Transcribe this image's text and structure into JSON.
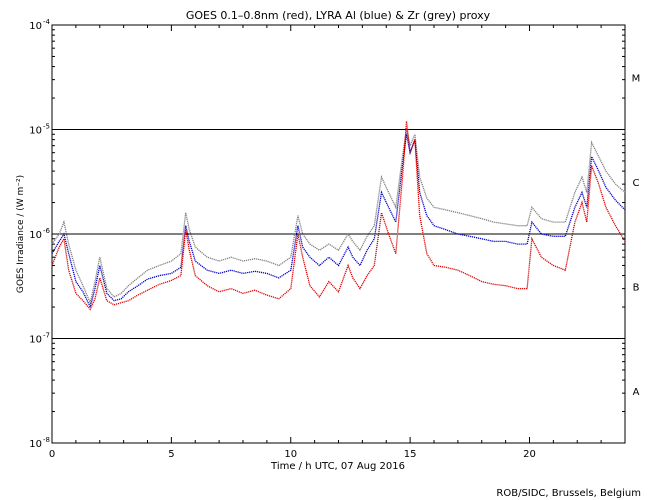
{
  "chart_data": {
    "type": "line",
    "title": "GOES 0.1–0.8nm (red), LYRA Al (blue) & Zr (grey) proxy",
    "xlabel": "Time / h UTC, 07 Aug 2016",
    "ylabel": "GOES Irradiance / (W m⁻²)",
    "credit": "ROB/SIDC, Brussels, Belgium",
    "xlim": [
      0,
      24
    ],
    "ylim": [
      1e-08,
      0.0001
    ],
    "yscale": "log",
    "x_ticks": [
      0,
      5,
      10,
      15,
      20
    ],
    "y_ticks": [
      {
        "value": 1e-08,
        "base": "10",
        "exp": "-8"
      },
      {
        "value": 1e-07,
        "base": "10",
        "exp": "-7"
      },
      {
        "value": 1e-06,
        "base": "10",
        "exp": "-6"
      },
      {
        "value": 1e-05,
        "base": "10",
        "exp": "-5"
      },
      {
        "value": 0.0001,
        "base": "10",
        "exp": "-4"
      }
    ],
    "class_lines": [
      1e-07,
      1e-06,
      1e-05
    ],
    "class_labels": [
      {
        "label": "A",
        "value": 3.16e-08
      },
      {
        "label": "B",
        "value": 3.16e-07
      },
      {
        "label": "C",
        "value": 3.16e-06
      },
      {
        "label": "M",
        "value": 3.16e-05
      }
    ],
    "series": [
      {
        "name": "Zr (grey) proxy",
        "color": "#808080",
        "x": [
          0,
          0.3,
          0.5,
          0.7,
          1.0,
          1.3,
          1.6,
          1.8,
          2.0,
          2.3,
          2.6,
          2.9,
          3.2,
          3.6,
          4.0,
          4.5,
          5.0,
          5.4,
          5.6,
          5.75,
          6.0,
          6.5,
          7.0,
          7.5,
          8.0,
          8.5,
          9.0,
          9.5,
          10.0,
          10.3,
          10.5,
          10.8,
          11.2,
          11.6,
          12.0,
          12.4,
          12.6,
          12.9,
          13.2,
          13.5,
          13.8,
          14.1,
          14.4,
          14.7,
          14.85,
          15.0,
          15.2,
          15.4,
          15.7,
          16.0,
          16.5,
          17.0,
          17.5,
          18.0,
          18.5,
          19.0,
          19.5,
          19.9,
          20.1,
          20.5,
          21.0,
          21.5,
          21.9,
          22.2,
          22.4,
          22.6,
          22.9,
          23.2,
          23.6,
          24.0
        ],
        "values": [
          8e-07,
          1e-06,
          1.3e-06,
          8e-07,
          4.5e-07,
          3.2e-07,
          2.2e-07,
          3.5e-07,
          6e-07,
          3e-07,
          2.5e-07,
          2.7e-07,
          3.2e-07,
          3.8e-07,
          4.5e-07,
          5e-07,
          5.5e-07,
          6.5e-07,
          1.6e-06,
          1.1e-06,
          7.5e-07,
          6e-07,
          5.5e-07,
          6e-07,
          5.5e-07,
          5.8e-07,
          5.5e-07,
          5e-07,
          6e-07,
          1.5e-06,
          1e-06,
          8e-07,
          7e-07,
          8e-07,
          7e-07,
          1e-06,
          8.5e-07,
          7e-07,
          9.5e-07,
          1.2e-06,
          3.5e-06,
          2.5e-06,
          1.8e-06,
          6e-06,
          1e-05,
          7e-06,
          9e-06,
          3.5e-06,
          2.2e-06,
          1.8e-06,
          1.7e-06,
          1.6e-06,
          1.5e-06,
          1.4e-06,
          1.3e-06,
          1.25e-06,
          1.2e-06,
          1.2e-06,
          1.8e-06,
          1.4e-06,
          1.3e-06,
          1.3e-06,
          2.5e-06,
          3.5e-06,
          2.5e-06,
          7.5e-06,
          5.5e-06,
          4e-06,
          3e-06,
          2.5e-06
        ]
      },
      {
        "name": "LYRA Al (blue) proxy",
        "color": "#0000cc",
        "x": [
          0,
          0.3,
          0.5,
          0.7,
          1.0,
          1.3,
          1.6,
          1.8,
          2.0,
          2.3,
          2.6,
          2.9,
          3.2,
          3.6,
          4.0,
          4.5,
          5.0,
          5.4,
          5.6,
          5.75,
          6.0,
          6.5,
          7.0,
          7.5,
          8.0,
          8.5,
          9.0,
          9.5,
          10.0,
          10.3,
          10.5,
          10.8,
          11.2,
          11.6,
          12.0,
          12.4,
          12.6,
          12.9,
          13.2,
          13.5,
          13.8,
          14.1,
          14.4,
          14.7,
          14.85,
          15.0,
          15.2,
          15.4,
          15.7,
          16.0,
          16.5,
          17.0,
          17.5,
          18.0,
          18.5,
          19.0,
          19.5,
          19.9,
          20.1,
          20.5,
          21.0,
          21.5,
          21.9,
          22.2,
          22.4,
          22.6,
          22.9,
          23.2,
          23.6,
          24.0
        ],
        "values": [
          6.5e-07,
          8.5e-07,
          1e-06,
          6.5e-07,
          3.5e-07,
          2.8e-07,
          2e-07,
          3e-07,
          5e-07,
          2.7e-07,
          2.3e-07,
          2.4e-07,
          2.8e-07,
          3.2e-07,
          3.7e-07,
          4e-07,
          4.2e-07,
          4.8e-07,
          1.2e-06,
          8.5e-07,
          5.5e-07,
          4.5e-07,
          4.2e-07,
          4.5e-07,
          4.2e-07,
          4.4e-07,
          4.2e-07,
          3.8e-07,
          4.5e-07,
          1.2e-06,
          7.5e-07,
          6e-07,
          5e-07,
          6e-07,
          5e-07,
          7.5e-07,
          6e-07,
          5e-07,
          7e-07,
          9e-07,
          2.5e-06,
          1.8e-06,
          1.3e-06,
          5e-06,
          9e-06,
          6e-06,
          8e-06,
          2.5e-06,
          1.5e-06,
          1.2e-06,
          1.1e-06,
          1e-06,
          9.5e-07,
          9e-07,
          8.5e-07,
          8.5e-07,
          8e-07,
          8e-07,
          1.3e-06,
          1e-06,
          9.5e-07,
          9.5e-07,
          1.8e-06,
          2.5e-06,
          1.8e-06,
          5.5e-06,
          4e-06,
          2.8e-06,
          2.1e-06,
          1.7e-06
        ]
      },
      {
        "name": "GOES 0.1–0.8nm (red)",
        "color": "#dd0000",
        "x": [
          0,
          0.3,
          0.5,
          0.7,
          1.0,
          1.3,
          1.6,
          1.8,
          2.0,
          2.3,
          2.6,
          2.9,
          3.2,
          3.6,
          4.0,
          4.5,
          5.0,
          5.4,
          5.6,
          5.75,
          6.0,
          6.5,
          7.0,
          7.5,
          8.0,
          8.5,
          9.0,
          9.5,
          10.0,
          10.3,
          10.5,
          10.8,
          11.2,
          11.6,
          12.0,
          12.4,
          12.6,
          12.9,
          13.2,
          13.5,
          13.8,
          14.1,
          14.4,
          14.7,
          14.85,
          15.0,
          15.2,
          15.4,
          15.7,
          16.0,
          16.5,
          17.0,
          17.5,
          18.0,
          18.5,
          19.0,
          19.5,
          19.9,
          20.1,
          20.5,
          21.0,
          21.5,
          21.9,
          22.2,
          22.4,
          22.6,
          22.9,
          23.2,
          23.6,
          24.0
        ],
        "values": [
          5e-07,
          7.5e-07,
          9e-07,
          4.5e-07,
          2.7e-07,
          2.3e-07,
          1.9e-07,
          2.4e-07,
          3.8e-07,
          2.3e-07,
          2.1e-07,
          2.2e-07,
          2.3e-07,
          2.6e-07,
          2.9e-07,
          3.3e-07,
          3.6e-07,
          4e-07,
          1.1e-06,
          7e-07,
          4e-07,
          3.2e-07,
          2.8e-07,
          3e-07,
          2.7e-07,
          2.9e-07,
          2.6e-07,
          2.4e-07,
          3e-07,
          1e-06,
          6e-07,
          3.2e-07,
          2.5e-07,
          3.5e-07,
          2.8e-07,
          5e-07,
          3.8e-07,
          3e-07,
          4e-07,
          5e-07,
          1.6e-06,
          1e-06,
          6.5e-07,
          4e-06,
          1.2e-05,
          6e-06,
          8e-06,
          1.5e-06,
          6.5e-07,
          5e-07,
          4.8e-07,
          4.5e-07,
          4e-07,
          3.5e-07,
          3.3e-07,
          3.2e-07,
          3e-07,
          3e-07,
          9e-07,
          6e-07,
          5e-07,
          4.5e-07,
          1.3e-06,
          2e-06,
          1.3e-06,
          4.5e-06,
          3e-06,
          1.8e-06,
          1.2e-06,
          8.5e-07
        ]
      }
    ]
  }
}
